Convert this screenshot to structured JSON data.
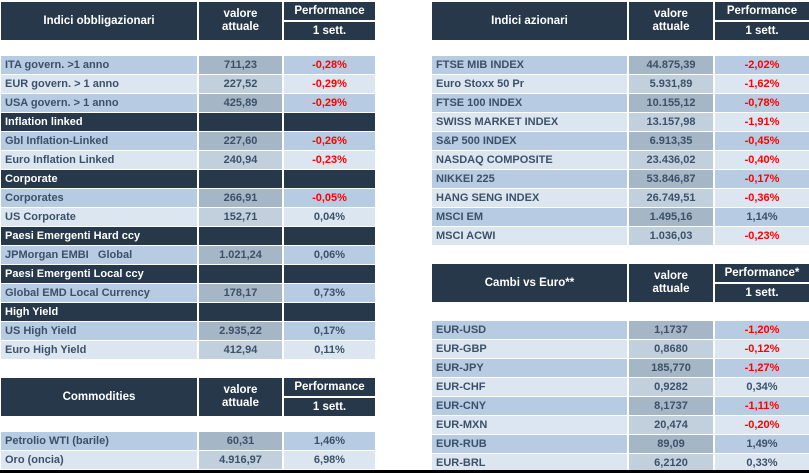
{
  "colors": {
    "header_bg": "#263849",
    "header_text": "#FFFFFF",
    "row_dark": "#B7CBE3",
    "row_light": "#DCE6F1",
    "value_dark": "#A5B6C6",
    "value_light": "#C2D0DE",
    "text_dark": "#3C5168",
    "negative_red": "#FF0000",
    "bottom_border": "#000000"
  },
  "columns": {
    "value_line1": "valore",
    "value_line2": "attuale",
    "perf_line2": "1 sett."
  },
  "tables": [
    {
      "id": "bonds",
      "title": "Indici obbligazionari",
      "perf_line1": "Performance",
      "rows": [
        {
          "type": "data",
          "label": "ITA govern. >1 anno",
          "value": "711,23",
          "perf": "-0,28%",
          "negative": true
        },
        {
          "type": "data",
          "label": "EUR govern. > 1 anno",
          "value": "227,52",
          "perf": "-0,29%",
          "negative": true
        },
        {
          "type": "data",
          "label": "USA govern. > 1 anno",
          "value": "425,89",
          "perf": "-0,29%",
          "negative": true
        },
        {
          "type": "section",
          "label": "Inflation linked"
        },
        {
          "type": "data",
          "label": "Gbl Inflation-Linked",
          "value": "227,60",
          "perf": "-0,26%",
          "negative": true
        },
        {
          "type": "data",
          "label": "Euro Inflation Linked",
          "value": "240,94",
          "perf": "-0,23%",
          "negative": true
        },
        {
          "type": "section",
          "label": "Corporate"
        },
        {
          "type": "data",
          "label": "Corporates",
          "value": "266,91",
          "perf": "-0,05%",
          "negative": true
        },
        {
          "type": "data",
          "label": "US Corporate",
          "value": "152,71",
          "perf": "0,04%",
          "negative": false
        },
        {
          "type": "section",
          "label": "Paesi Emergenti Hard ccy"
        },
        {
          "type": "data",
          "label": "JPMorgan EMBI   Global",
          "value": "1.021,24",
          "perf": "0,06%",
          "negative": false
        },
        {
          "type": "section",
          "label": "Paesi Emergenti Local ccy"
        },
        {
          "type": "data",
          "label": "Global EMD Local Currency",
          "value": "178,17",
          "perf": "0,73%",
          "negative": false
        },
        {
          "type": "section",
          "label": "High Yield"
        },
        {
          "type": "data",
          "label": "US High Yield",
          "value": "2.935,22",
          "perf": "0,17%",
          "negative": false
        },
        {
          "type": "data",
          "label": "Euro High Yield",
          "value": "412,94",
          "perf": "0,11%",
          "negative": false
        }
      ]
    },
    {
      "id": "equities",
      "title": "Indici azionari",
      "perf_line1": "Performance",
      "rows": [
        {
          "type": "data",
          "label": "FTSE MIB INDEX",
          "value": "44.875,39",
          "perf": "-2,02%",
          "negative": true
        },
        {
          "type": "data",
          "label": "Euro Stoxx 50 Pr",
          "value": "5.931,89",
          "perf": "-1,62%",
          "negative": true
        },
        {
          "type": "data",
          "label": "FTSE 100 INDEX",
          "value": "10.155,12",
          "perf": "-0,78%",
          "negative": true
        },
        {
          "type": "data",
          "label": "SWISS MARKET INDEX",
          "value": "13.157,98",
          "perf": "-1,91%",
          "negative": true
        },
        {
          "type": "data",
          "label": "S&P 500 INDEX",
          "value": "6.913,35",
          "perf": "-0,45%",
          "negative": true
        },
        {
          "type": "data",
          "label": "NASDAQ COMPOSITE",
          "value": "23.436,02",
          "perf": "-0,40%",
          "negative": true
        },
        {
          "type": "data",
          "label": "NIKKEI 225",
          "value": "53.846,87",
          "perf": "-0,17%",
          "negative": true
        },
        {
          "type": "data",
          "label": "HANG SENG INDEX",
          "value": "26.749,51",
          "perf": "-0,36%",
          "negative": true
        },
        {
          "type": "data",
          "label": "MSCI EM",
          "value": "1.495,16",
          "perf": "1,14%",
          "negative": false
        },
        {
          "type": "data",
          "label": "MSCI ACWI",
          "value": "1.036,03",
          "perf": "-0,23%",
          "negative": true
        }
      ]
    },
    {
      "id": "commodities",
      "title": "Commodities",
      "perf_line1": "Performance",
      "rows": [
        {
          "type": "data",
          "label": "Petrolio WTI (barile)",
          "value": "60,31",
          "perf": "1,46%",
          "negative": false
        },
        {
          "type": "data",
          "label": "Oro (oncia)",
          "value": "4.916,97",
          "perf": "6,98%",
          "negative": false
        }
      ]
    },
    {
      "id": "fx",
      "title": "Cambi vs Euro**",
      "perf_line1": "Performance*",
      "rows": [
        {
          "type": "data",
          "label": "EUR-USD",
          "value": "1,1737",
          "perf": "-1,20%",
          "negative": true
        },
        {
          "type": "data",
          "label": "EUR-GBP",
          "value": "0,8680",
          "perf": "-0,12%",
          "negative": true
        },
        {
          "type": "data",
          "label": "EUR-JPY",
          "value": "185,770",
          "perf": "-1,27%",
          "negative": true
        },
        {
          "type": "data",
          "label": "EUR-CHF",
          "value": "0,9282",
          "perf": "0,34%",
          "negative": false
        },
        {
          "type": "data",
          "label": "EUR-CNY",
          "value": "8,1737",
          "perf": "-1,11%",
          "negative": true
        },
        {
          "type": "data",
          "label": "EUR-MXN",
          "value": "20,474",
          "perf": "-0,20%",
          "negative": true
        },
        {
          "type": "data",
          "label": "EUR-RUB",
          "value": "89,09",
          "perf": "1,49%",
          "negative": false
        },
        {
          "type": "data",
          "label": "EUR-BRL",
          "value": "6,2120",
          "perf": "0,33%",
          "negative": false
        }
      ]
    }
  ]
}
